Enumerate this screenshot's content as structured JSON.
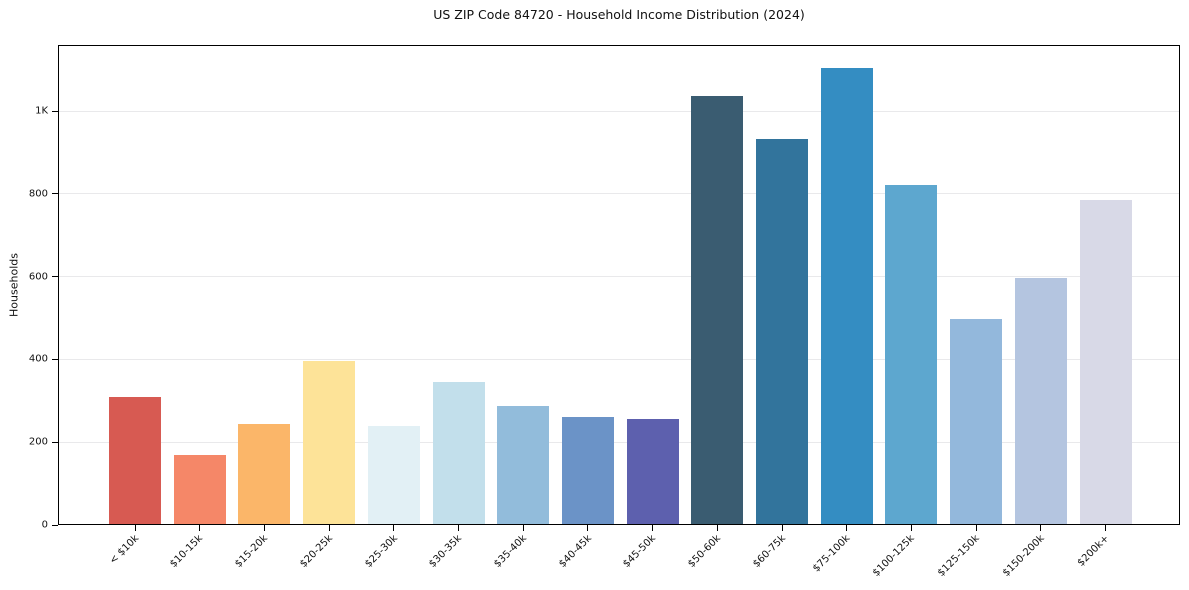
{
  "title": "US ZIP Code 84720 - Household Income Distribution (2024)",
  "chart_data": {
    "type": "bar",
    "title": "US ZIP Code 84720 - Household Income Distribution (2024)",
    "xlabel": "",
    "ylabel": "Households",
    "ylim": [
      0,
      1160
    ],
    "grid": "horizontal-light-gray",
    "legend": "none",
    "categories": [
      "< $10k",
      "$10-15k",
      "$15-20k",
      "$20-25k",
      "$25-30k",
      "$30-35k",
      "$35-40k",
      "$40-45k",
      "$45-50k",
      "$50-60k",
      "$60-75k",
      "$75-100k",
      "$100-125k",
      "$125-150k",
      "$150-200k",
      "$200k+"
    ],
    "values": [
      310,
      168,
      245,
      397,
      239,
      346,
      287,
      262,
      255,
      1036,
      932,
      1104,
      822,
      498,
      597,
      786
    ],
    "bar_colors": [
      "#d75a52",
      "#f58768",
      "#fbb669",
      "#fde398",
      "#e2f0f5",
      "#c2dfeb",
      "#92bcdb",
      "#6b93c7",
      "#5d60ae",
      "#3a5c71",
      "#32749c",
      "#348dc2",
      "#5da7cf",
      "#93b8dc",
      "#b4c5e0",
      "#d8d9e7"
    ],
    "yticks": {
      "values": [
        0,
        200,
        400,
        600,
        800,
        1000
      ],
      "labels": [
        "0",
        "200",
        "400",
        "600",
        "800",
        "1K"
      ]
    }
  }
}
